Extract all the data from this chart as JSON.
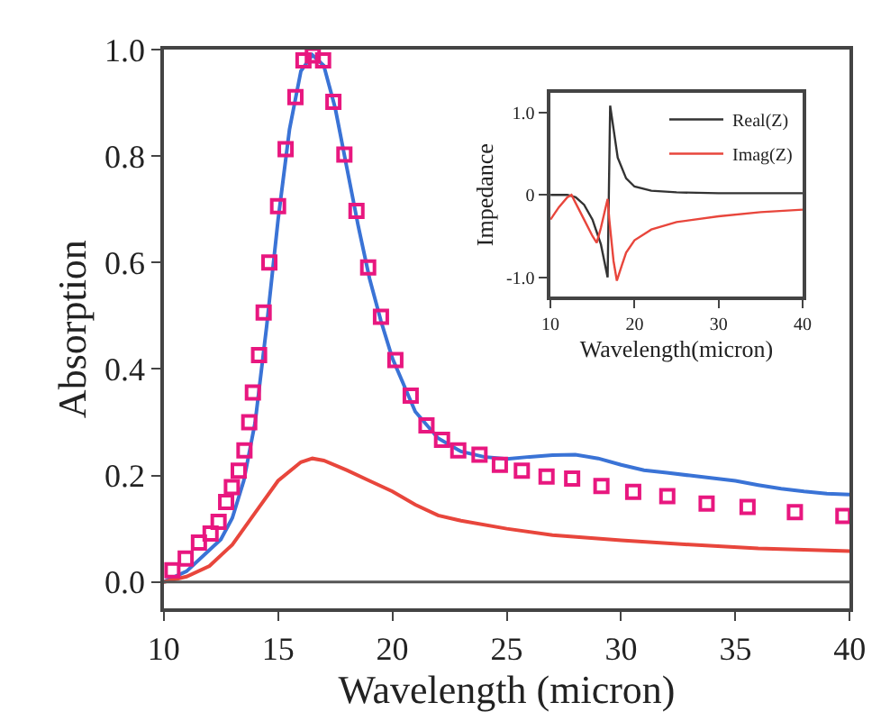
{
  "chart_data": [
    {
      "type": "line",
      "xlabel": "Wavelength (micron)",
      "ylabel": "Absorption",
      "xlim": [
        10,
        40
      ],
      "ylim": [
        -0.05,
        1.0
      ],
      "xticks": [
        10,
        15,
        20,
        25,
        30,
        35,
        40
      ],
      "yticks": [
        {
          "value": 0,
          "label": "0.0"
        },
        {
          "value": 0.2,
          "label": "0.2"
        },
        {
          "value": 0.4,
          "label": "0.4"
        },
        {
          "value": 0.6,
          "label": "0.6"
        },
        {
          "value": 0.8,
          "label": "0.8"
        },
        {
          "value": 1.0,
          "label": "1.0"
        }
      ],
      "legend": false,
      "ref_lines": [
        {
          "axis": "y",
          "value": 0,
          "color": "#555555"
        }
      ],
      "series": [
        {
          "type": "line",
          "color": "#3a73d6",
          "x": [
            10,
            11,
            12,
            12.5,
            13,
            13.5,
            14,
            14.5,
            15,
            15.5,
            16,
            16.5,
            17,
            17.5,
            18,
            18.5,
            19,
            19.5,
            20,
            21,
            22,
            23,
            24,
            25,
            26,
            27,
            28,
            29,
            30,
            31,
            32,
            33,
            34,
            35,
            36,
            37,
            38,
            39,
            40
          ],
          "values": [
            0,
            0.02,
            0.06,
            0.08,
            0.12,
            0.19,
            0.3,
            0.48,
            0.68,
            0.85,
            0.96,
            0.99,
            0.97,
            0.89,
            0.78,
            0.67,
            0.57,
            0.49,
            0.42,
            0.32,
            0.27,
            0.245,
            0.235,
            0.231,
            0.235,
            0.238,
            0.239,
            0.232,
            0.22,
            0.21,
            0.205,
            0.2,
            0.195,
            0.19,
            0.182,
            0.175,
            0.17,
            0.166,
            0.164
          ]
        },
        {
          "type": "line",
          "color": "#e8463c",
          "x": [
            10,
            11,
            12,
            13,
            14,
            15,
            16,
            16.5,
            17,
            18,
            19,
            20,
            21,
            22,
            23,
            25,
            27,
            30,
            33,
            36,
            40
          ],
          "values": [
            0,
            0.01,
            0.03,
            0.07,
            0.13,
            0.19,
            0.225,
            0.232,
            0.228,
            0.21,
            0.19,
            0.17,
            0.145,
            0.125,
            0.115,
            0.1,
            0.088,
            0.078,
            0.07,
            0.063,
            0.058
          ]
        },
        {
          "type": "scatter",
          "marker": "square",
          "color": "#e8177f",
          "x": [
            10.38,
            10.96,
            11.54,
            12.05,
            12.4,
            12.73,
            12.98,
            13.28,
            13.53,
            13.74,
            13.9,
            14.17,
            14.37,
            14.62,
            15.0,
            15.33,
            15.76,
            16.11,
            16.52,
            16.97,
            17.42,
            17.9,
            18.43,
            18.94,
            19.5,
            20.13,
            20.8,
            21.49,
            22.17,
            22.88,
            23.81,
            24.7,
            25.66,
            26.74,
            27.86,
            29.14,
            30.53,
            32.02,
            33.74,
            35.53,
            37.6,
            39.72
          ],
          "values": [
            0.022,
            0.044,
            0.074,
            0.091,
            0.113,
            0.15,
            0.178,
            0.209,
            0.247,
            0.3,
            0.356,
            0.426,
            0.506,
            0.6,
            0.706,
            0.813,
            0.911,
            0.98,
            0.989,
            0.98,
            0.902,
            0.803,
            0.697,
            0.591,
            0.498,
            0.417,
            0.35,
            0.294,
            0.267,
            0.247,
            0.239,
            0.22,
            0.209,
            0.198,
            0.194,
            0.18,
            0.169,
            0.161,
            0.147,
            0.141,
            0.131,
            0.124
          ]
        }
      ]
    },
    {
      "type": "line",
      "xlabel": "Wavelength(micron)",
      "ylabel": "Impedance",
      "xlim": [
        10,
        40
      ],
      "ylim": [
        -1.23,
        1.23
      ],
      "xticks": [
        10,
        20,
        30,
        40
      ],
      "yticks": [
        {
          "value": -1,
          "label": "-1.0"
        },
        0,
        {
          "value": 1,
          "label": "1.0"
        }
      ],
      "legend": "top right",
      "series": [
        {
          "name": "Real(Z)",
          "color": "#333333",
          "x": [
            10,
            12,
            13,
            14,
            15,
            16,
            16.8,
            17.1,
            17.5,
            18,
            19,
            20,
            22,
            25,
            30,
            40
          ],
          "values": [
            0,
            0,
            -0.03,
            -0.12,
            -0.3,
            -0.6,
            -1.0,
            1.08,
            0.8,
            0.45,
            0.2,
            0.1,
            0.05,
            0.03,
            0.02,
            0.02
          ]
        },
        {
          "name": "Imag(Z)",
          "color": "#e8463c",
          "x": [
            10,
            11,
            12,
            12.5,
            13,
            14,
            15,
            15.5,
            16,
            16.8,
            17.0,
            17.5,
            17.9,
            18.5,
            19,
            20,
            22,
            25,
            30,
            35,
            40
          ],
          "values": [
            -0.3,
            -0.15,
            -0.03,
            0,
            -0.1,
            -0.3,
            -0.5,
            -0.58,
            -0.4,
            -0.05,
            -0.3,
            -0.8,
            -1.04,
            -0.85,
            -0.7,
            -0.55,
            -0.42,
            -0.33,
            -0.26,
            -0.21,
            -0.18
          ]
        }
      ]
    }
  ]
}
